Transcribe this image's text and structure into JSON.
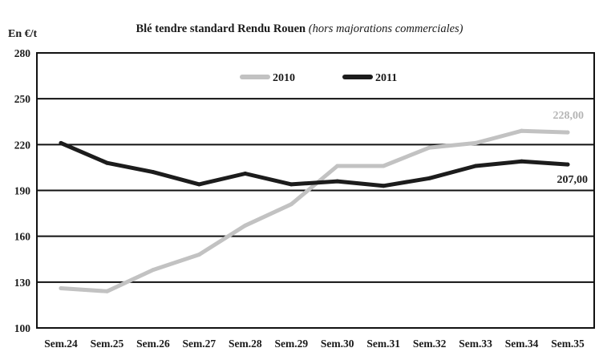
{
  "chart_data": {
    "type": "line",
    "title": "Blé tendre standard Rendu Rouen",
    "subtitle": "(hors majorations commerciales)",
    "ylabel": "En €/t",
    "xlabel": "",
    "categories": [
      "Sem.24",
      "Sem.25",
      "Sem.26",
      "Sem.27",
      "Sem.28",
      "Sem.29",
      "Sem.30",
      "Sem.31",
      "Sem.32",
      "Sem.33",
      "Sem.34",
      "Sem.35"
    ],
    "yticks": [
      100,
      130,
      160,
      190,
      220,
      250,
      280
    ],
    "ylim": [
      100,
      280
    ],
    "grid": "horizontal",
    "legend_position": "top-center",
    "series": [
      {
        "name": "2010",
        "color": "#c2c2c2",
        "values": [
          126,
          124,
          138,
          148,
          167,
          181,
          206,
          206,
          218,
          221,
          229,
          228
        ]
      },
      {
        "name": "2011",
        "color": "#1c1c1c",
        "values": [
          221,
          208,
          202,
          194,
          201,
          194,
          196,
          193,
          198,
          206,
          209,
          207
        ]
      }
    ],
    "annotations": [
      {
        "series": "2010",
        "text": "228,00",
        "color": "#b5b5b5"
      },
      {
        "series": "2011",
        "text": "207,00",
        "color": "#1c1c1c"
      }
    ]
  }
}
